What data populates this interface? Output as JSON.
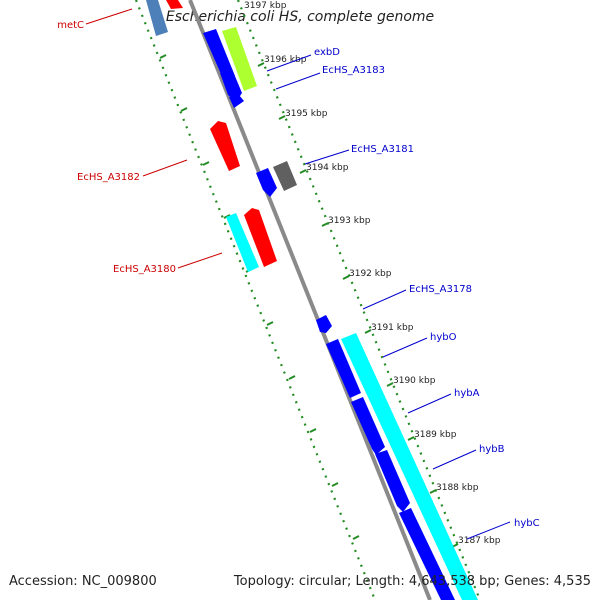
{
  "title": "Escherichia coli HS, complete genome",
  "footer": {
    "accession": "Accession: NC_009800",
    "stats": "Topology: circular; Length: 4,643,538 bp; Genes: 4,535"
  },
  "colors": {
    "forward_label": "#0000cc",
    "reverse_label": "#cc0000",
    "backbone": "#8a8a8a",
    "tick": "#228b22"
  },
  "ticks": [
    "3197 kbp",
    "3196 kbp",
    "3195 kbp",
    "3194 kbp",
    "3193 kbp",
    "3192 kbp",
    "3191 kbp",
    "3190 kbp",
    "3189 kbp",
    "3188 kbp",
    "3187 kbp"
  ],
  "gene_labels": [
    {
      "text": "metC",
      "strand": "reverse"
    },
    {
      "text": "exbD",
      "strand": "forward"
    },
    {
      "text": "EcHS_A3183",
      "strand": "forward"
    },
    {
      "text": "EcHS_A3181",
      "strand": "forward"
    },
    {
      "text": "EcHS_A3182",
      "strand": "reverse"
    },
    {
      "text": "EcHS_A3180",
      "strand": "reverse"
    },
    {
      "text": "EcHS_A3178",
      "strand": "forward"
    },
    {
      "text": "hybO",
      "strand": "forward"
    },
    {
      "text": "hybA",
      "strand": "forward"
    },
    {
      "text": "hybB",
      "strand": "forward"
    },
    {
      "text": "hybC",
      "strand": "forward"
    }
  ]
}
